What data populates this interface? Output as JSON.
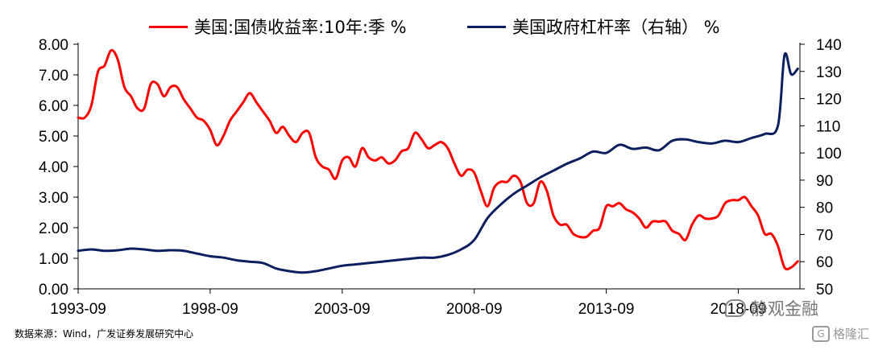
{
  "legend": {
    "series1_label": "美国:国债收益率:10年:季 %",
    "series2_label": "美国政府杠杆率（右轴）  %"
  },
  "source": "数据来源：Wind，广发证券发展研究中心",
  "watermark": {
    "text": "静观金融",
    "brand": "格隆汇",
    "brand_icon": "G"
  },
  "colors": {
    "red": "#ff0000",
    "navy": "#0b1f5e"
  },
  "chart_data": {
    "type": "line",
    "title": "",
    "xlabel": "",
    "ylabel": "",
    "x_ticks": [
      "1993-09",
      "1998-09",
      "2003-09",
      "2008-09",
      "2013-09",
      "2018-09"
    ],
    "y_left": {
      "range": [
        0,
        8
      ],
      "ticks": [
        "0.00",
        "1.00",
        "2.00",
        "3.00",
        "4.00",
        "5.00",
        "6.00",
        "7.00",
        "8.00"
      ]
    },
    "y_right": {
      "range": [
        50,
        140
      ],
      "ticks": [
        "50",
        "60",
        "70",
        "80",
        "90",
        "100",
        "110",
        "120",
        "130",
        "140"
      ]
    },
    "grid": false,
    "legend_position": "top",
    "series": [
      {
        "name": "美国:国债收益率:10年:季 %",
        "axis": "left",
        "color": "#ff0000",
        "points": [
          [
            "1993-09",
            5.6
          ],
          [
            "1993-12",
            5.6
          ],
          [
            "1994-03",
            6.0
          ],
          [
            "1994-06",
            7.1
          ],
          [
            "1994-09",
            7.3
          ],
          [
            "1994-12",
            7.8
          ],
          [
            "1995-03",
            7.5
          ],
          [
            "1995-06",
            6.6
          ],
          [
            "1995-09",
            6.3
          ],
          [
            "1995-12",
            5.9
          ],
          [
            "1996-03",
            5.9
          ],
          [
            "1996-06",
            6.7
          ],
          [
            "1996-09",
            6.7
          ],
          [
            "1996-12",
            6.3
          ],
          [
            "1997-03",
            6.6
          ],
          [
            "1997-06",
            6.6
          ],
          [
            "1997-09",
            6.2
          ],
          [
            "1997-12",
            5.9
          ],
          [
            "1998-03",
            5.6
          ],
          [
            "1998-06",
            5.5
          ],
          [
            "1998-09",
            5.2
          ],
          [
            "1998-12",
            4.7
          ],
          [
            "1999-03",
            5.0
          ],
          [
            "1999-06",
            5.5
          ],
          [
            "1999-09",
            5.8
          ],
          [
            "1999-12",
            6.1
          ],
          [
            "2000-03",
            6.4
          ],
          [
            "2000-06",
            6.1
          ],
          [
            "2000-09",
            5.8
          ],
          [
            "2000-12",
            5.5
          ],
          [
            "2001-03",
            5.1
          ],
          [
            "2001-06",
            5.3
          ],
          [
            "2001-09",
            5.0
          ],
          [
            "2001-12",
            4.8
          ],
          [
            "2002-03",
            5.1
          ],
          [
            "2002-06",
            5.1
          ],
          [
            "2002-09",
            4.3
          ],
          [
            "2002-12",
            4.0
          ],
          [
            "2003-03",
            3.9
          ],
          [
            "2003-06",
            3.6
          ],
          [
            "2003-09",
            4.2
          ],
          [
            "2003-12",
            4.3
          ],
          [
            "2004-03",
            4.0
          ],
          [
            "2004-06",
            4.6
          ],
          [
            "2004-09",
            4.3
          ],
          [
            "2004-12",
            4.2
          ],
          [
            "2005-03",
            4.3
          ],
          [
            "2005-06",
            4.1
          ],
          [
            "2005-09",
            4.2
          ],
          [
            "2005-12",
            4.5
          ],
          [
            "2006-03",
            4.6
          ],
          [
            "2006-06",
            5.1
          ],
          [
            "2006-09",
            4.9
          ],
          [
            "2006-12",
            4.6
          ],
          [
            "2007-03",
            4.7
          ],
          [
            "2007-06",
            4.8
          ],
          [
            "2007-09",
            4.6
          ],
          [
            "2007-12",
            4.1
          ],
          [
            "2008-03",
            3.7
          ],
          [
            "2008-06",
            3.9
          ],
          [
            "2008-09",
            3.8
          ],
          [
            "2008-12",
            3.2
          ],
          [
            "2009-03",
            2.7
          ],
          [
            "2009-06",
            3.3
          ],
          [
            "2009-09",
            3.5
          ],
          [
            "2009-12",
            3.5
          ],
          [
            "2010-03",
            3.7
          ],
          [
            "2010-06",
            3.5
          ],
          [
            "2010-09",
            2.8
          ],
          [
            "2010-12",
            2.8
          ],
          [
            "2011-03",
            3.5
          ],
          [
            "2011-06",
            3.2
          ],
          [
            "2011-09",
            2.4
          ],
          [
            "2011-12",
            2.1
          ],
          [
            "2012-03",
            2.1
          ],
          [
            "2012-06",
            1.8
          ],
          [
            "2012-09",
            1.7
          ],
          [
            "2012-12",
            1.7
          ],
          [
            "2013-03",
            1.9
          ],
          [
            "2013-06",
            2.0
          ],
          [
            "2013-09",
            2.7
          ],
          [
            "2013-12",
            2.7
          ],
          [
            "2014-03",
            2.8
          ],
          [
            "2014-06",
            2.6
          ],
          [
            "2014-09",
            2.5
          ],
          [
            "2014-12",
            2.3
          ],
          [
            "2015-03",
            2.0
          ],
          [
            "2015-06",
            2.2
          ],
          [
            "2015-09",
            2.2
          ],
          [
            "2015-12",
            2.2
          ],
          [
            "2016-03",
            1.9
          ],
          [
            "2016-06",
            1.8
          ],
          [
            "2016-09",
            1.6
          ],
          [
            "2016-12",
            2.1
          ],
          [
            "2017-03",
            2.4
          ],
          [
            "2017-06",
            2.3
          ],
          [
            "2017-09",
            2.3
          ],
          [
            "2017-12",
            2.4
          ],
          [
            "2018-03",
            2.8
          ],
          [
            "2018-06",
            2.9
          ],
          [
            "2018-09",
            2.9
          ],
          [
            "2018-12",
            3.0
          ],
          [
            "2019-03",
            2.7
          ],
          [
            "2019-06",
            2.4
          ],
          [
            "2019-09",
            1.8
          ],
          [
            "2019-12",
            1.8
          ],
          [
            "2020-03",
            1.4
          ],
          [
            "2020-06",
            0.7
          ],
          [
            "2020-09",
            0.7
          ],
          [
            "2020-12",
            0.9
          ]
        ]
      },
      {
        "name": "美国政府杠杆率（右轴）  %",
        "axis": "right",
        "color": "#0b1f5e",
        "points": [
          [
            "1993-09",
            64.0
          ],
          [
            "1994-03",
            64.5
          ],
          [
            "1994-09",
            64.0
          ],
          [
            "1995-03",
            64.2
          ],
          [
            "1995-09",
            64.8
          ],
          [
            "1996-03",
            64.5
          ],
          [
            "1996-09",
            64.0
          ],
          [
            "1997-03",
            64.2
          ],
          [
            "1997-09",
            64.0
          ],
          [
            "1998-03",
            63.0
          ],
          [
            "1998-09",
            62.0
          ],
          [
            "1999-03",
            61.5
          ],
          [
            "1999-09",
            60.5
          ],
          [
            "2000-03",
            60.0
          ],
          [
            "2000-09",
            59.5
          ],
          [
            "2001-03",
            57.5
          ],
          [
            "2001-09",
            56.5
          ],
          [
            "2002-03",
            56.0
          ],
          [
            "2002-09",
            56.5
          ],
          [
            "2003-03",
            57.5
          ],
          [
            "2003-09",
            58.5
          ],
          [
            "2004-03",
            59.0
          ],
          [
            "2004-09",
            59.5
          ],
          [
            "2005-03",
            60.0
          ],
          [
            "2005-09",
            60.5
          ],
          [
            "2006-03",
            61.0
          ],
          [
            "2006-09",
            61.5
          ],
          [
            "2007-03",
            61.5
          ],
          [
            "2007-09",
            62.5
          ],
          [
            "2008-03",
            64.5
          ],
          [
            "2008-09",
            68.0
          ],
          [
            "2009-03",
            76.0
          ],
          [
            "2009-09",
            81.0
          ],
          [
            "2010-03",
            85.0
          ],
          [
            "2010-09",
            88.0
          ],
          [
            "2011-03",
            91.0
          ],
          [
            "2011-09",
            93.5
          ],
          [
            "2012-03",
            96.0
          ],
          [
            "2012-09",
            98.0
          ],
          [
            "2013-03",
            100.5
          ],
          [
            "2013-09",
            100.0
          ],
          [
            "2014-03",
            103.0
          ],
          [
            "2014-09",
            101.5
          ],
          [
            "2015-03",
            102.0
          ],
          [
            "2015-09",
            101.0
          ],
          [
            "2016-03",
            104.5
          ],
          [
            "2016-09",
            105.0
          ],
          [
            "2017-03",
            104.0
          ],
          [
            "2017-09",
            103.5
          ],
          [
            "2018-03",
            104.5
          ],
          [
            "2018-09",
            104.0
          ],
          [
            "2019-03",
            105.5
          ],
          [
            "2019-09",
            107.0
          ],
          [
            "2020-03",
            110.0
          ],
          [
            "2020-06",
            136.0
          ],
          [
            "2020-09",
            129.0
          ],
          [
            "2020-12",
            131.0
          ]
        ]
      }
    ]
  }
}
